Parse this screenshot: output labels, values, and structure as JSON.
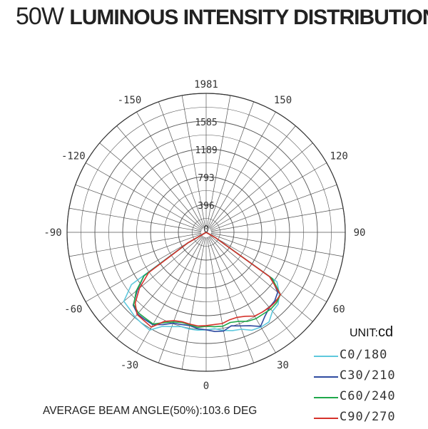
{
  "title_main": "50W",
  "title_rest": "LUMINOUS INTENSITY DISTRIBUTION",
  "unit_label": "UNIT:",
  "unit_value": "cd",
  "footer": "AVERAGE BEAM ANGLE(50%):103.6 DEG",
  "chart_data": {
    "type": "polar",
    "radial_ticks": [
      396,
      793,
      1189,
      1585,
      1981
    ],
    "rmax": 1981,
    "angle_labels": [
      {
        "angle": 0,
        "label": "0"
      },
      {
        "angle": 30,
        "label": "30"
      },
      {
        "angle": -30,
        "label": "-30"
      },
      {
        "angle": 60,
        "label": "60"
      },
      {
        "angle": -60,
        "label": "-60"
      },
      {
        "angle": 90,
        "label": "90"
      },
      {
        "angle": -90,
        "label": "-90"
      },
      {
        "angle": 120,
        "label": "120"
      },
      {
        "angle": -120,
        "label": "-120"
      },
      {
        "angle": 150,
        "label": "150"
      },
      {
        "angle": -150,
        "label": "-150"
      }
    ],
    "top_label": "1981",
    "grid_step_deg": 10,
    "series": [
      {
        "name": "C0/180",
        "color": "#5ec8dd",
        "points": [
          [
            -60,
            300
          ],
          [
            -55,
            1300
          ],
          [
            -50,
            1530
          ],
          [
            -45,
            1545
          ],
          [
            -40,
            1575
          ],
          [
            -35,
            1590
          ],
          [
            -30,
            1610
          ],
          [
            -25,
            1480
          ],
          [
            -20,
            1430
          ],
          [
            -15,
            1390
          ],
          [
            -10,
            1400
          ],
          [
            -5,
            1400
          ],
          [
            0,
            1390
          ],
          [
            5,
            1380
          ],
          [
            10,
            1420
          ],
          [
            15,
            1450
          ],
          [
            20,
            1470
          ],
          [
            25,
            1540
          ],
          [
            30,
            1560
          ],
          [
            35,
            1560
          ],
          [
            40,
            1470
          ],
          [
            45,
            1450
          ],
          [
            50,
            1360
          ],
          [
            55,
            1230
          ],
          [
            60,
            150
          ]
        ]
      },
      {
        "name": "C30/210",
        "color": "#2e4aa0",
        "points": [
          [
            -60,
            300
          ],
          [
            -55,
            1080
          ],
          [
            -50,
            1280
          ],
          [
            -45,
            1470
          ],
          [
            -40,
            1520
          ],
          [
            -35,
            1520
          ],
          [
            -30,
            1520
          ],
          [
            -25,
            1450
          ],
          [
            -20,
            1380
          ],
          [
            -15,
            1360
          ],
          [
            -10,
            1350
          ],
          [
            -5,
            1380
          ],
          [
            0,
            1390
          ],
          [
            5,
            1420
          ],
          [
            10,
            1430
          ],
          [
            15,
            1380
          ],
          [
            20,
            1420
          ],
          [
            25,
            1470
          ],
          [
            30,
            1550
          ],
          [
            35,
            1460
          ],
          [
            40,
            1400
          ],
          [
            45,
            1380
          ],
          [
            50,
            1330
          ],
          [
            55,
            1140
          ],
          [
            60,
            150
          ]
        ]
      },
      {
        "name": "C60/240",
        "color": "#1fa84a",
        "points": [
          [
            -60,
            300
          ],
          [
            -55,
            1080
          ],
          [
            -50,
            1300
          ],
          [
            -45,
            1460
          ],
          [
            -40,
            1500
          ],
          [
            -35,
            1500
          ],
          [
            -30,
            1510
          ],
          [
            -25,
            1420
          ],
          [
            -20,
            1360
          ],
          [
            -15,
            1330
          ],
          [
            -10,
            1340
          ],
          [
            -5,
            1360
          ],
          [
            0,
            1340
          ],
          [
            5,
            1350
          ],
          [
            10,
            1360
          ],
          [
            15,
            1330
          ],
          [
            20,
            1350
          ],
          [
            25,
            1400
          ],
          [
            30,
            1420
          ],
          [
            35,
            1420
          ],
          [
            40,
            1430
          ],
          [
            45,
            1420
          ],
          [
            50,
            1380
          ],
          [
            55,
            1150
          ],
          [
            60,
            150
          ]
        ]
      },
      {
        "name": "C90/270",
        "color": "#d6322b",
        "points": [
          [
            -60,
            300
          ],
          [
            -55,
            1000
          ],
          [
            -50,
            1240
          ],
          [
            -45,
            1430
          ],
          [
            -40,
            1530
          ],
          [
            -35,
            1540
          ],
          [
            -30,
            1560
          ],
          [
            -25,
            1400
          ],
          [
            -20,
            1340
          ],
          [
            -15,
            1320
          ],
          [
            -10,
            1330
          ],
          [
            -5,
            1340
          ],
          [
            0,
            1330
          ],
          [
            5,
            1320
          ],
          [
            10,
            1320
          ],
          [
            15,
            1290
          ],
          [
            20,
            1290
          ],
          [
            25,
            1320
          ],
          [
            30,
            1380
          ],
          [
            35,
            1390
          ],
          [
            40,
            1400
          ],
          [
            45,
            1400
          ],
          [
            50,
            1380
          ],
          [
            55,
            1100
          ],
          [
            60,
            150
          ]
        ]
      }
    ]
  }
}
